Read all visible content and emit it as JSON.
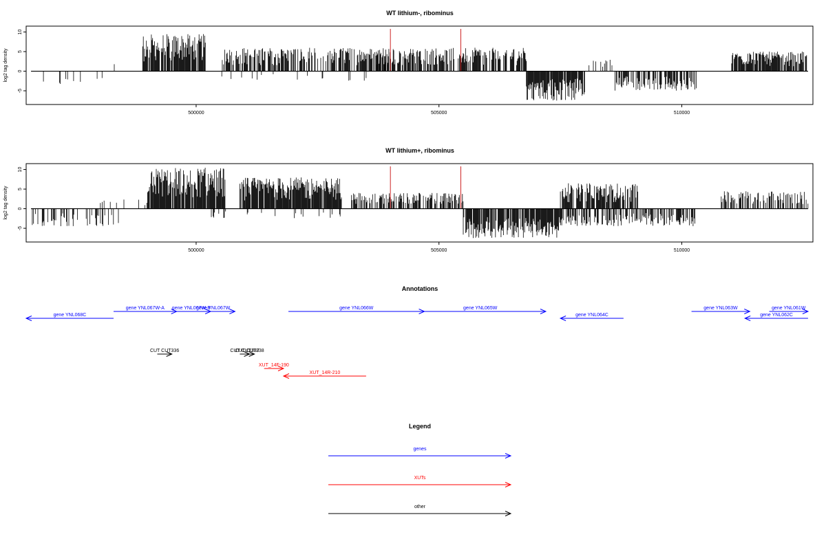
{
  "chart_data": [
    {
      "type": "bar",
      "title": "WT lithium-, ribominus",
      "ylabel": "log2 tag density",
      "xlim": [
        496500,
        512700
      ],
      "ylim": [
        -8.5,
        11.5
      ],
      "xticks": [
        500000,
        505000,
        510000
      ],
      "xtick_labels": [
        "500000",
        "505000",
        "510000"
      ],
      "yticks": [
        -5,
        0,
        5,
        10
      ],
      "ytick_labels": [
        "-5",
        "0",
        "5",
        "10"
      ],
      "segments": [
        {
          "start": 496600,
          "end": 497400,
          "sign": -1,
          "max": 4,
          "density": 0.12
        },
        {
          "start": 497400,
          "end": 498200,
          "sign": -1,
          "max": 3.5,
          "density": 0.05
        },
        {
          "start": 498200,
          "end": 498400,
          "sign": 1,
          "max": 2.5,
          "density": 0.2
        },
        {
          "start": 498900,
          "end": 500200,
          "sign": 1,
          "max": 9.5,
          "density": 0.9
        },
        {
          "start": 500500,
          "end": 504000,
          "sign": 1,
          "max": 6,
          "density": 0.6
        },
        {
          "start": 500400,
          "end": 504000,
          "sign": -1,
          "max": 2.5,
          "density": 0.05
        },
        {
          "start": 503700,
          "end": 506800,
          "sign": 1,
          "max": 6,
          "density": 0.7
        },
        {
          "start": 506800,
          "end": 508000,
          "sign": -1,
          "max": 7.5,
          "density": 0.9
        },
        {
          "start": 508000,
          "end": 508600,
          "sign": 1,
          "max": 3,
          "density": 0.25
        },
        {
          "start": 508600,
          "end": 510300,
          "sign": -1,
          "max": 5,
          "density": 0.6
        },
        {
          "start": 511000,
          "end": 512600,
          "sign": 1,
          "max": 5,
          "density": 0.8
        }
      ],
      "markers": [
        504000,
        505450
      ]
    },
    {
      "type": "bar",
      "title": "WT lithium+, ribominus",
      "ylabel": "log2 tag density",
      "xlim": [
        496500,
        512700
      ],
      "ylim": [
        -8.5,
        11.5
      ],
      "xticks": [
        500000,
        505000,
        510000
      ],
      "xtick_labels": [
        "500000",
        "505000",
        "510000"
      ],
      "yticks": [
        -5,
        0,
        5,
        10
      ],
      "ytick_labels": [
        "-5",
        "0",
        "5",
        "10"
      ],
      "segments": [
        {
          "start": 496600,
          "end": 498400,
          "sign": -1,
          "max": 4.5,
          "density": 0.3
        },
        {
          "start": 497900,
          "end": 499000,
          "sign": 1,
          "max": 2.5,
          "density": 0.15
        },
        {
          "start": 499000,
          "end": 500600,
          "sign": 1,
          "max": 10.5,
          "density": 0.95
        },
        {
          "start": 500900,
          "end": 503000,
          "sign": 1,
          "max": 8,
          "density": 0.95
        },
        {
          "start": 500300,
          "end": 503000,
          "sign": -1,
          "max": 2.5,
          "density": 0.1
        },
        {
          "start": 503200,
          "end": 505500,
          "sign": 1,
          "max": 4,
          "density": 0.6
        },
        {
          "start": 505500,
          "end": 507500,
          "sign": -1,
          "max": 7.5,
          "density": 0.85
        },
        {
          "start": 507500,
          "end": 509100,
          "sign": 1,
          "max": 6.5,
          "density": 0.8
        },
        {
          "start": 507400,
          "end": 510300,
          "sign": -1,
          "max": 4.5,
          "density": 0.5
        },
        {
          "start": 510800,
          "end": 512600,
          "sign": 1,
          "max": 4.5,
          "density": 0.55
        }
      ],
      "markers": [
        504000,
        505450
      ]
    }
  ],
  "annotations": {
    "title": "Annotations",
    "xlim": [
      496500,
      512700
    ],
    "features": [
      {
        "label": "gene YNL068C",
        "start": 496500,
        "end": 498300,
        "strand": "-",
        "type": "gene",
        "row": 1
      },
      {
        "label": "gene YNL067W-A",
        "start": 498300,
        "end": 499600,
        "strand": "+",
        "type": "gene",
        "row": 0
      },
      {
        "label": "gene YNL067W-B",
        "start": 499500,
        "end": 500300,
        "strand": "+",
        "type": "gene",
        "row": 0
      },
      {
        "label": "gene YNL067W",
        "start": 499900,
        "end": 500800,
        "strand": "+",
        "type": "gene",
        "row": 0
      },
      {
        "label": "gene YNL066W",
        "start": 501900,
        "end": 504700,
        "strand": "+",
        "type": "gene",
        "row": 0
      },
      {
        "label": "gene YNL065W",
        "start": 504500,
        "end": 507200,
        "strand": "+",
        "type": "gene",
        "row": 0
      },
      {
        "label": "gene YNL064C",
        "start": 507500,
        "end": 508800,
        "strand": "-",
        "type": "gene",
        "row": 1
      },
      {
        "label": "gene YNL063W",
        "start": 510200,
        "end": 511400,
        "strand": "+",
        "type": "gene",
        "row": 0
      },
      {
        "label": "gene YNL062C",
        "start": 511300,
        "end": 512600,
        "strand": "-",
        "type": "gene",
        "row": 1
      },
      {
        "label": "gene YNL061W",
        "start": 511800,
        "end": 512600,
        "strand": "+",
        "type": "gene",
        "row": 0
      },
      {
        "label": "CUT CUT336",
        "start": 499200,
        "end": 499500,
        "strand": "+",
        "type": "other",
        "row": 3
      },
      {
        "label": "CUT CUT337",
        "start": 500900,
        "end": 501100,
        "strand": "+",
        "type": "other",
        "row": 3
      },
      {
        "label": "CUT CUT338",
        "start": 501000,
        "end": 501200,
        "strand": "+",
        "type": "other",
        "row": 3
      },
      {
        "label": "XUT_14F-190",
        "start": 501400,
        "end": 501800,
        "strand": "+",
        "type": "xut",
        "row": 4
      },
      {
        "label": "XUT_14R-210",
        "start": 501800,
        "end": 503500,
        "strand": "-",
        "type": "xut",
        "row": 5
      }
    ]
  },
  "legend": {
    "title": "Legend",
    "items": [
      {
        "label": "genes",
        "color": "#0000ff"
      },
      {
        "label": "XUTs",
        "color": "#ff0000"
      },
      {
        "label": "other",
        "color": "#000000"
      }
    ]
  }
}
